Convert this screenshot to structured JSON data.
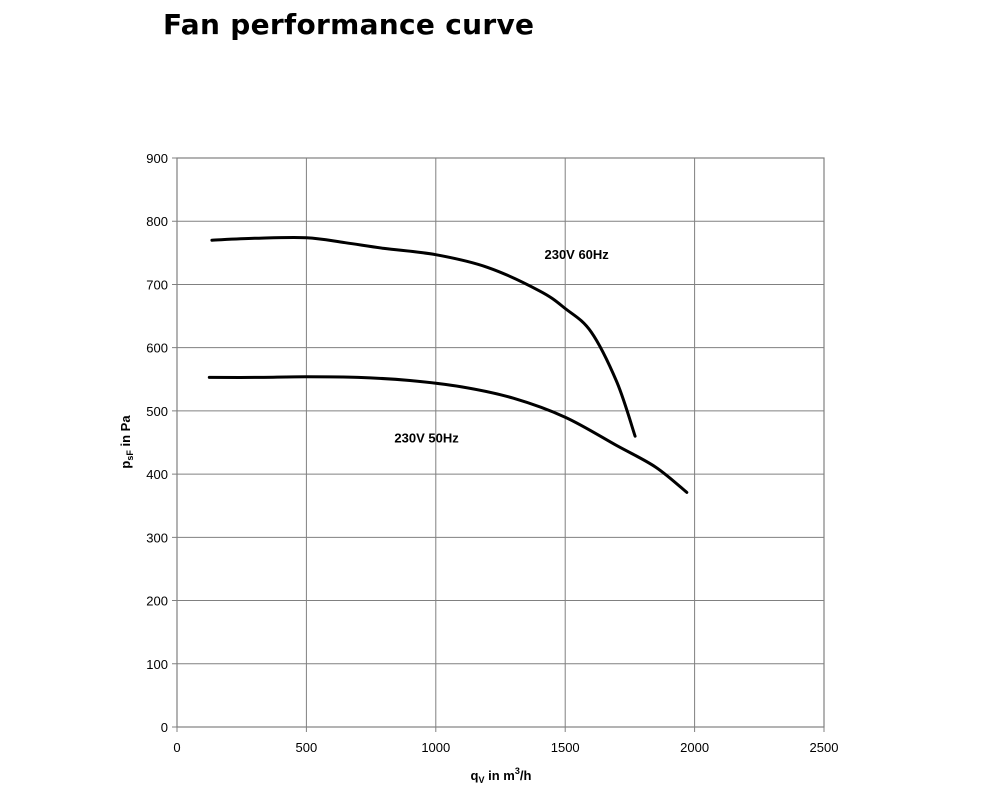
{
  "title": "Fan performance curve",
  "chart_data": {
    "type": "line",
    "title": "Fan performance curve",
    "xlabel": {
      "main": "q",
      "sub": "V",
      "mid": " in m",
      "sup": "3",
      "tail": "/h"
    },
    "ylabel": {
      "main": "p",
      "sub": "sF",
      "tail": " in Pa"
    },
    "xlim": [
      0,
      2500
    ],
    "ylim": [
      0,
      900
    ],
    "x_ticks": [
      0,
      500,
      1000,
      1500,
      2000,
      2500
    ],
    "y_ticks": [
      0,
      100,
      200,
      300,
      400,
      500,
      600,
      700,
      800,
      900
    ],
    "grid": true,
    "series": [
      {
        "name": "230V 60Hz",
        "points": [
          [
            135,
            770
          ],
          [
            300,
            773
          ],
          [
            500,
            774
          ],
          [
            650,
            766
          ],
          [
            800,
            757
          ],
          [
            1000,
            747
          ],
          [
            1200,
            727
          ],
          [
            1400,
            690
          ],
          [
            1500,
            662
          ],
          [
            1600,
            625
          ],
          [
            1700,
            545
          ],
          [
            1770,
            460
          ]
        ]
      },
      {
        "name": "230V 50Hz",
        "points": [
          [
            125,
            553
          ],
          [
            300,
            553
          ],
          [
            500,
            554
          ],
          [
            700,
            553
          ],
          [
            900,
            548
          ],
          [
            1100,
            538
          ],
          [
            1300,
            520
          ],
          [
            1500,
            490
          ],
          [
            1700,
            445
          ],
          [
            1850,
            411
          ],
          [
            1970,
            371
          ]
        ]
      }
    ],
    "series_label_positions": [
      [
        1420,
        740
      ],
      [
        840,
        450
      ]
    ]
  }
}
